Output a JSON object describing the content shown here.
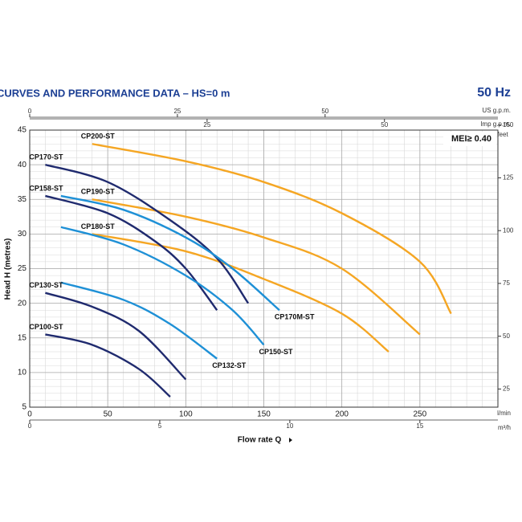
{
  "chart_data": {
    "type": "line",
    "title": "CURVES AND PERFORMANCE DATA  –  HS=0 m",
    "frequency": "50 Hz",
    "annotation": "MEI≥ 0.40",
    "xlabel": "Flow rate Q",
    "ylabel": "Head H (metres)",
    "xunit": "l/min",
    "xlim": [
      0,
      300
    ],
    "xticks": [
      0,
      50,
      100,
      150,
      200,
      250
    ],
    "ylim": [
      5,
      45
    ],
    "yticks": [
      5,
      10,
      15,
      20,
      25,
      30,
      35,
      40,
      45
    ],
    "x2unit": "m³/h",
    "x2lim": [
      0,
      18
    ],
    "x2ticks": [
      0,
      5,
      10,
      15
    ],
    "x3unit": "US g.p.m.",
    "x3lim": [
      0,
      79.25
    ],
    "x3ticks": [
      0,
      25,
      50
    ],
    "x4unit": "Imp g.p.m.",
    "x4lim": [
      0,
      65.99
    ],
    "x4ticks": [
      25,
      50
    ],
    "y2unit": "feet",
    "y2lim": [
      16.4,
      147.6
    ],
    "y2ticks": [
      25,
      50,
      75,
      100,
      125,
      150
    ],
    "grid": true,
    "series": [
      {
        "name": "CP200-ST",
        "color": "#f5a623",
        "x": [
          40,
          100,
          150,
          200,
          250,
          270
        ],
        "values": [
          43,
          40.5,
          37.5,
          33,
          26,
          18.5
        ]
      },
      {
        "name": "CP190-ST",
        "color": "#f5a623",
        "x": [
          40,
          100,
          150,
          200,
          250
        ],
        "values": [
          35,
          32.5,
          29.5,
          25,
          15.5
        ]
      },
      {
        "name": "CP180-ST",
        "color": "#f5a623",
        "x": [
          40,
          100,
          150,
          200,
          230
        ],
        "values": [
          30,
          27.5,
          23.5,
          18.5,
          13
        ]
      },
      {
        "name": "CP170-ST",
        "color": "#1f2a6e",
        "x": [
          10,
          50,
          90,
          120,
          140
        ],
        "values": [
          40,
          37.5,
          32,
          26.5,
          20
        ]
      },
      {
        "name": "CP158-ST",
        "color": "#1f2a6e",
        "x": [
          10,
          50,
          80,
          100,
          120
        ],
        "values": [
          35.5,
          33,
          29,
          25,
          19
        ]
      },
      {
        "name": "CP170M-ST",
        "color": "#1e90d6",
        "x": [
          20,
          60,
          100,
          130,
          160
        ],
        "values": [
          35.5,
          33.5,
          29.5,
          25,
          19
        ]
      },
      {
        "name": "CP150-ST",
        "color": "#1e90d6",
        "x": [
          20,
          60,
          100,
          130,
          150
        ],
        "values": [
          31,
          28.5,
          24,
          19,
          14
        ]
      },
      {
        "name": "CP132-ST",
        "color": "#1e90d6",
        "x": [
          20,
          60,
          90,
          120
        ],
        "values": [
          23,
          20.5,
          17,
          12
        ]
      },
      {
        "name": "CP130-ST",
        "color": "#1f2a6e",
        "x": [
          10,
          40,
          70,
          100
        ],
        "values": [
          21.5,
          19.5,
          16,
          9
        ]
      },
      {
        "name": "CP100-ST",
        "color": "#1f2a6e",
        "x": [
          10,
          40,
          70,
          90
        ],
        "values": [
          15.5,
          14,
          10.5,
          6.5
        ]
      }
    ]
  }
}
